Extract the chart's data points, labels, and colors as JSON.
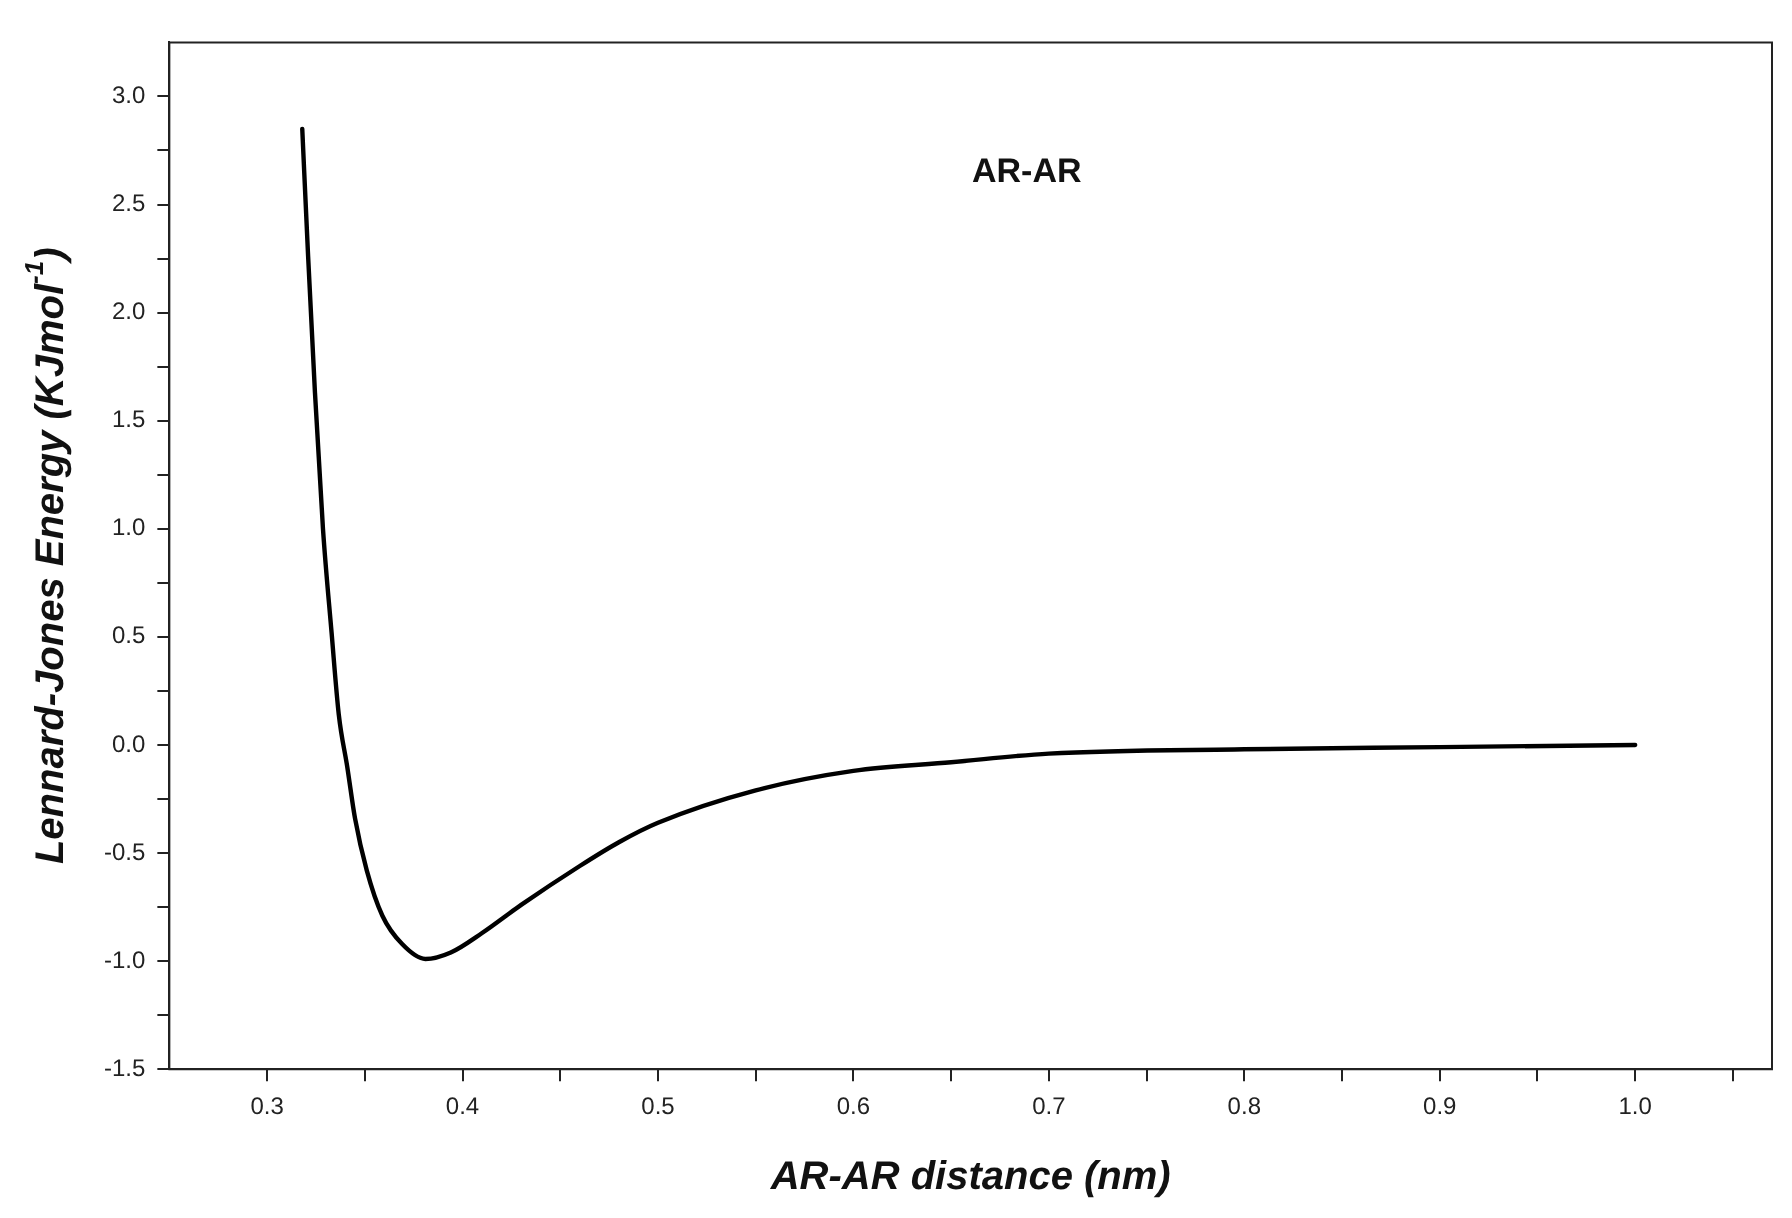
{
  "chart_data": {
    "type": "line",
    "title": "AR-AR",
    "xlabel": "AR-AR distance (nm)",
    "ylabel": "Lennard-Jones Energy (KJmol$^{-1}$)",
    "x": [
      0.318,
      0.321,
      0.3245,
      0.3286,
      0.333,
      0.3367,
      0.341,
      0.345,
      0.351,
      0.359,
      0.369,
      0.381,
      0.394,
      0.41,
      0.43,
      0.46,
      0.48,
      0.5,
      0.55,
      0.6,
      0.65,
      0.7,
      0.8,
      0.9,
      1.0
    ],
    "series": [
      {
        "color": "#000000",
        "values": [
          2.85,
          2.26,
          1.63,
          1.0,
          0.52,
          0.14,
          -0.1,
          -0.34,
          -0.58,
          -0.79,
          -0.92,
          -0.99,
          -0.96,
          -0.87,
          -0.74,
          -0.56,
          -0.45,
          -0.36,
          -0.21,
          -0.12,
          -0.08,
          -0.04,
          -0.02,
          -0.01,
          0.0
        ]
      }
    ],
    "xlim": [
      0.25,
      1.07
    ],
    "ylim": [
      -1.5,
      3.25
    ],
    "xticks": [
      0.3,
      {
        "value": 0.35,
        "label": null
      },
      0.4,
      {
        "value": 0.45,
        "label": null
      },
      0.5,
      {
        "value": 0.55,
        "label": null
      },
      0.6,
      {
        "value": 0.65,
        "label": null
      },
      0.7,
      {
        "value": 0.75,
        "label": null
      },
      0.8,
      {
        "value": 0.85,
        "label": null
      },
      0.9,
      {
        "value": 0.95,
        "label": null
      },
      {
        "value": 1,
        "label": "1.0"
      },
      {
        "value": 1.05,
        "label": null
      }
    ],
    "yticks": [
      -1.5,
      {
        "value": -1.25,
        "label": null
      },
      {
        "value": -1,
        "label": "-1.0"
      },
      {
        "value": -0.75,
        "label": null
      },
      -0.5,
      {
        "value": -0.25,
        "label": null
      },
      {
        "value": 0,
        "label": "0.0"
      },
      {
        "value": 0.25,
        "label": null
      },
      0.5,
      {
        "value": 0.75,
        "label": null
      },
      {
        "value": 1,
        "label": "1.0"
      },
      {
        "value": 1.25,
        "label": null
      },
      1.5,
      {
        "value": 1.75,
        "label": null
      },
      {
        "value": 2,
        "label": "2.0"
      },
      {
        "value": 2.25,
        "label": null
      },
      2.5,
      {
        "value": 2.75,
        "label": null
      },
      {
        "value": 3,
        "label": "3.0"
      }
    ],
    "grid": false,
    "legend": false,
    "marker": "none",
    "line_style": "solid"
  }
}
